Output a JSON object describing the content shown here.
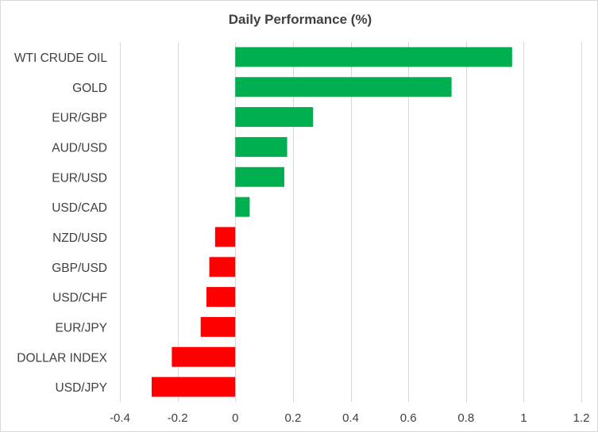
{
  "chart_data": {
    "type": "bar",
    "orientation": "horizontal",
    "title": "Daily Performance  (%)",
    "xlabel": "",
    "ylabel": "",
    "categories": [
      "WTI CRUDE OIL",
      "GOLD",
      "EUR/GBP",
      "AUD/USD",
      "EUR/USD",
      "USD/CAD",
      "NZD/USD",
      "GBP/USD",
      "USD/CHF",
      "EUR/JPY",
      "DOLLAR INDEX",
      "USD/JPY"
    ],
    "values": [
      0.96,
      0.75,
      0.27,
      0.18,
      0.17,
      0.05,
      -0.07,
      -0.09,
      -0.1,
      -0.12,
      -0.22,
      -0.29
    ],
    "xlim": [
      -0.4,
      1.2
    ],
    "xticks": [
      -0.4,
      -0.2,
      0,
      0.2,
      0.4,
      0.6,
      0.8,
      1,
      1.2
    ],
    "xtick_labels": [
      "-0.4",
      "-0.2",
      "0",
      "0.2",
      "0.4",
      "0.6",
      "0.8",
      "1",
      "1.2"
    ],
    "grid": "vertical",
    "legend": "none",
    "colors": {
      "positive": "#00b050",
      "negative": "#ff0000",
      "grid": "#d9d9d9",
      "text": "#404040"
    }
  }
}
